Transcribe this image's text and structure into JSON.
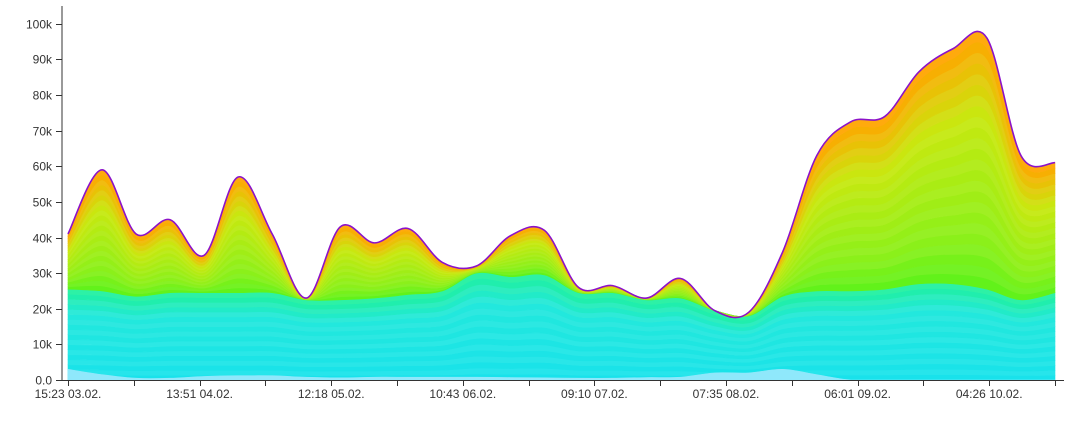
{
  "chart_data": {
    "type": "area",
    "stacked": true,
    "ylim": [
      0,
      105000
    ],
    "y_ticks": [
      {
        "value": 0,
        "label": "0.0"
      },
      {
        "value": 10000,
        "label": "10k"
      },
      {
        "value": 20000,
        "label": "20k"
      },
      {
        "value": 30000,
        "label": "30k"
      },
      {
        "value": 40000,
        "label": "40k"
      },
      {
        "value": 50000,
        "label": "50k"
      },
      {
        "value": 60000,
        "label": "60k"
      },
      {
        "value": 70000,
        "label": "70k"
      },
      {
        "value": 80000,
        "label": "80k"
      },
      {
        "value": 90000,
        "label": "90k"
      },
      {
        "value": 100000,
        "label": "100k"
      }
    ],
    "x_tick_labels": [
      "15:23 03.02.",
      "13:51 04.02.",
      "12:18 05.02.",
      "10:43 06.02.",
      "09:10 07.02.",
      "07:35 08.02.",
      "06:01 09.02.",
      "04:26 10.02."
    ],
    "minor_tick_count": 16,
    "x_start": "15:23 03.02.",
    "x_end": "04:26 10.02.",
    "total": [
      41000,
      59000,
      41000,
      45000,
      35000,
      57000,
      41000,
      23000,
      43000,
      38500,
      42500,
      33000,
      32000,
      40500,
      42000,
      26000,
      26500,
      23000,
      28500,
      19500,
      19000,
      36000,
      63000,
      72500,
      74000,
      86500,
      93000,
      96000,
      63000,
      61000
    ],
    "base": [
      25500,
      25000,
      23500,
      24500,
      24500,
      24500,
      24500,
      22500,
      22500,
      23000,
      24000,
      25000,
      30000,
      29000,
      29500,
      24500,
      24500,
      22500,
      23000,
      19500,
      18000,
      23500,
      25000,
      25000,
      25500,
      27000,
      27000,
      25500,
      22500,
      24500
    ],
    "bottom_band": [
      3000,
      1500,
      500,
      500,
      1000,
      1200,
      1200,
      800,
      600,
      800,
      800,
      800,
      800,
      700,
      600,
      500,
      500,
      700,
      800,
      2000,
      2000,
      3000,
      1500,
      0,
      0,
      0,
      0,
      0,
      0,
      0
    ],
    "colors": {
      "outline": "#8b12c9",
      "top": "#ffa600",
      "upper_mid": "#c8e80f",
      "lime": "#58f21a",
      "green": "#20f0a0",
      "cyan": "#18e2ec",
      "bottom": "#8fe8fb"
    },
    "grid": false
  }
}
